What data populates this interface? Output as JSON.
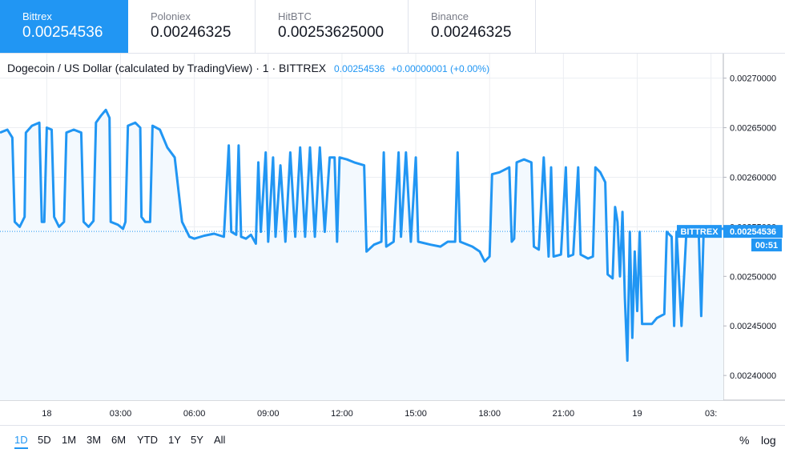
{
  "tabs": [
    {
      "exchange": "Bittrex",
      "price": "0.00254536",
      "active": true
    },
    {
      "exchange": "Poloniex",
      "price": "0.00246325",
      "active": false
    },
    {
      "exchange": "HitBTC",
      "price": "0.00253625000",
      "active": false
    },
    {
      "exchange": "Binance",
      "price": "0.00246325",
      "active": false
    }
  ],
  "legend": {
    "symbol": "Dogecoin / US Dollar (calculated by TradingView) · 1 · BITTREX",
    "last": "0.00254536",
    "change": "+0.00000001 (+0.00%)"
  },
  "price_tag": {
    "exchange": "BITTREX",
    "price": "0.00254536",
    "countdown": "00:51"
  },
  "ranges": [
    "1D",
    "5D",
    "1M",
    "3M",
    "6M",
    "YTD",
    "1Y",
    "5Y",
    "All"
  ],
  "active_range": "1D",
  "options": {
    "percent": "%",
    "log": "log"
  },
  "colors": {
    "line": "#2196f3",
    "fill": "#f3f9fe",
    "grid": "#eceef2",
    "text": "#131722"
  },
  "chart_data": {
    "type": "area",
    "title": "Dogecoin / US Dollar (calculated by TradingView) · 1 · BITTREX",
    "y_ticks": [
      "0.00270000",
      "0.00265000",
      "0.00260000",
      "0.00255000",
      "0.00250000",
      "0.00245000",
      "0.00240000"
    ],
    "y_tick_values": [
      0.0027,
      0.00265,
      0.0026,
      0.00255,
      0.0025,
      0.00245,
      0.0024
    ],
    "ylim": [
      0.002388,
      0.002711
    ],
    "x_ticks": [
      "18",
      "03:00",
      "06:00",
      "09:00",
      "12:00",
      "15:00",
      "18:00",
      "21:00",
      "19",
      "03:"
    ],
    "x_tick_hours": [
      0,
      3,
      6,
      9,
      12,
      15,
      18,
      21,
      24,
      27
    ],
    "xlim_hours": [
      -1.9,
      27.5
    ],
    "last_price": 0.00254536,
    "grid": true,
    "series": [
      {
        "values_hours": [
          [
            -1.9,
            0.002645
          ],
          [
            -1.6,
            0.002648
          ],
          [
            -1.4,
            0.00264
          ],
          [
            -1.3,
            0.002555
          ],
          [
            -1.1,
            0.00255
          ],
          [
            -0.9,
            0.00256
          ],
          [
            -0.85,
            0.002645
          ],
          [
            -0.6,
            0.002652
          ],
          [
            -0.3,
            0.002655
          ],
          [
            -0.2,
            0.002555
          ],
          [
            -0.1,
            0.002555
          ],
          [
            0.0,
            0.00265
          ],
          [
            0.2,
            0.002648
          ],
          [
            0.3,
            0.00256
          ],
          [
            0.5,
            0.00255
          ],
          [
            0.7,
            0.002555
          ],
          [
            0.8,
            0.002645
          ],
          [
            1.1,
            0.002648
          ],
          [
            1.4,
            0.002645
          ],
          [
            1.5,
            0.002555
          ],
          [
            1.7,
            0.00255
          ],
          [
            1.9,
            0.002556
          ],
          [
            2.0,
            0.002655
          ],
          [
            2.2,
            0.002662
          ],
          [
            2.4,
            0.002668
          ],
          [
            2.55,
            0.00266
          ],
          [
            2.6,
            0.002555
          ],
          [
            2.9,
            0.002552
          ],
          [
            3.1,
            0.002548
          ],
          [
            3.2,
            0.002555
          ],
          [
            3.3,
            0.002652
          ],
          [
            3.6,
            0.002655
          ],
          [
            3.8,
            0.00265
          ],
          [
            3.85,
            0.00256
          ],
          [
            4.0,
            0.002555
          ],
          [
            4.2,
            0.002555
          ],
          [
            4.3,
            0.002652
          ],
          [
            4.6,
            0.002648
          ],
          [
            4.9,
            0.00263
          ],
          [
            5.2,
            0.00262
          ],
          [
            5.5,
            0.002555
          ],
          [
            5.8,
            0.00254
          ],
          [
            6.0,
            0.002538
          ],
          [
            6.4,
            0.002541
          ],
          [
            6.8,
            0.002543
          ],
          [
            7.2,
            0.00254
          ],
          [
            7.4,
            0.002632
          ],
          [
            7.5,
            0.002545
          ],
          [
            7.7,
            0.002542
          ],
          [
            7.8,
            0.002632
          ],
          [
            7.9,
            0.00254
          ],
          [
            8.1,
            0.002538
          ],
          [
            8.3,
            0.002542
          ],
          [
            8.5,
            0.002533
          ],
          [
            8.6,
            0.002615
          ],
          [
            8.7,
            0.002545
          ],
          [
            8.9,
            0.002625
          ],
          [
            9.0,
            0.002535
          ],
          [
            9.2,
            0.00262
          ],
          [
            9.3,
            0.00254
          ],
          [
            9.5,
            0.002612
          ],
          [
            9.7,
            0.002535
          ],
          [
            9.9,
            0.002625
          ],
          [
            10.1,
            0.00254
          ],
          [
            10.3,
            0.00263
          ],
          [
            10.5,
            0.00254
          ],
          [
            10.7,
            0.00263
          ],
          [
            10.9,
            0.00254
          ],
          [
            11.1,
            0.00263
          ],
          [
            11.3,
            0.002545
          ],
          [
            11.5,
            0.00262
          ],
          [
            11.7,
            0.00262
          ],
          [
            11.8,
            0.002535
          ],
          [
            11.9,
            0.00262
          ],
          [
            12.2,
            0.002618
          ],
          [
            12.5,
            0.002615
          ],
          [
            12.9,
            0.002612
          ],
          [
            13.0,
            0.002525
          ],
          [
            13.3,
            0.002532
          ],
          [
            13.6,
            0.002535
          ],
          [
            13.7,
            0.002625
          ],
          [
            13.8,
            0.00253
          ],
          [
            14.1,
            0.002535
          ],
          [
            14.3,
            0.002625
          ],
          [
            14.4,
            0.00254
          ],
          [
            14.6,
            0.002625
          ],
          [
            14.8,
            0.002535
          ],
          [
            15.0,
            0.00262
          ],
          [
            15.1,
            0.002535
          ],
          [
            15.6,
            0.002532
          ],
          [
            16.0,
            0.00253
          ],
          [
            16.3,
            0.002535
          ],
          [
            16.6,
            0.002535
          ],
          [
            16.7,
            0.002625
          ],
          [
            16.8,
            0.002535
          ],
          [
            17.3,
            0.00253
          ],
          [
            17.6,
            0.002525
          ],
          [
            17.8,
            0.002515
          ],
          [
            18.0,
            0.00252
          ],
          [
            18.1,
            0.002603
          ],
          [
            18.4,
            0.002605
          ],
          [
            18.8,
            0.00261
          ],
          [
            18.9,
            0.002535
          ],
          [
            19.0,
            0.002538
          ],
          [
            19.1,
            0.002615
          ],
          [
            19.4,
            0.002618
          ],
          [
            19.7,
            0.002615
          ],
          [
            19.8,
            0.00253
          ],
          [
            20.0,
            0.002527
          ],
          [
            20.2,
            0.00262
          ],
          [
            20.4,
            0.00252
          ],
          [
            20.5,
            0.00261
          ],
          [
            20.6,
            0.00252
          ],
          [
            20.9,
            0.002522
          ],
          [
            21.1,
            0.00261
          ],
          [
            21.2,
            0.00252
          ],
          [
            21.4,
            0.002522
          ],
          [
            21.6,
            0.00261
          ],
          [
            21.7,
            0.002522
          ],
          [
            22.0,
            0.002518
          ],
          [
            22.2,
            0.00252
          ],
          [
            22.3,
            0.00261
          ],
          [
            22.5,
            0.002605
          ],
          [
            22.7,
            0.002595
          ],
          [
            22.8,
            0.002502
          ],
          [
            23.0,
            0.002498
          ],
          [
            23.1,
            0.00257
          ],
          [
            23.2,
            0.002555
          ],
          [
            23.3,
            0.0025
          ],
          [
            23.4,
            0.002565
          ],
          [
            23.5,
            0.002478
          ],
          [
            23.6,
            0.002415
          ],
          [
            23.7,
            0.002545
          ],
          [
            23.8,
            0.002438
          ],
          [
            23.9,
            0.002525
          ],
          [
            24.0,
            0.002465
          ],
          [
            24.1,
            0.002545
          ],
          [
            24.2,
            0.002452
          ],
          [
            24.6,
            0.002452
          ],
          [
            24.8,
            0.002458
          ],
          [
            25.1,
            0.002462
          ],
          [
            25.2,
            0.002545
          ],
          [
            25.4,
            0.00254
          ],
          [
            25.5,
            0.00245
          ],
          [
            25.6,
            0.002545
          ],
          [
            25.8,
            0.00245
          ],
          [
            26.0,
            0.002545
          ],
          [
            26.3,
            0.002545
          ],
          [
            26.5,
            0.002545
          ],
          [
            26.6,
            0.00246
          ],
          [
            26.7,
            0.002545
          ],
          [
            27.0,
            0.002548
          ],
          [
            27.5,
            0.002548
          ]
        ]
      }
    ]
  }
}
